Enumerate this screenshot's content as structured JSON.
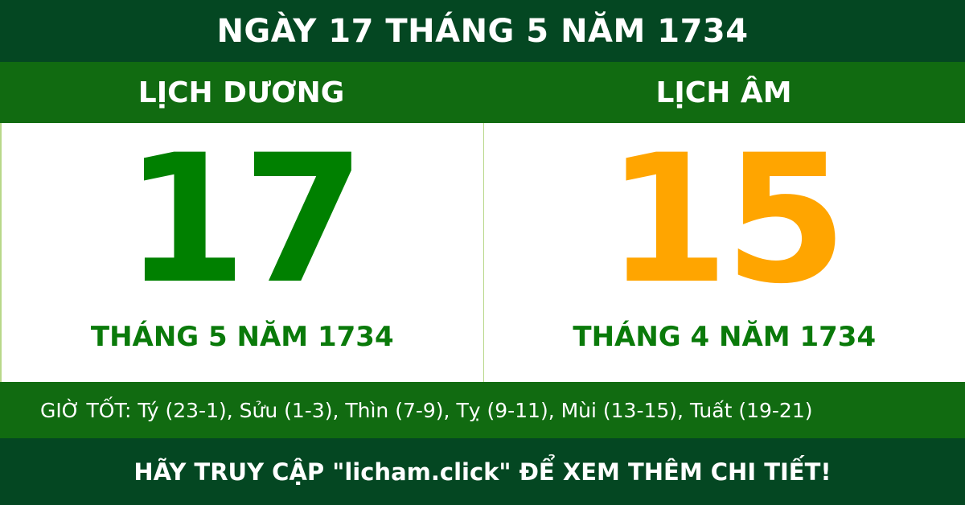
{
  "title": "NGÀY 17 THÁNG 5 NĂM 1734",
  "solar": {
    "heading": "LỊCH DƯƠNG",
    "day": "17",
    "month_year": "THÁNG 5 NĂM 1734"
  },
  "lunar": {
    "heading": "LỊCH ÂM",
    "day": "15",
    "month_year": "THÁNG 4 NĂM 1734"
  },
  "good_hours": "GIỜ TỐT: Tý (23-1), Sửu (1-3), Thìn (7-9), Tỵ (9-11), Mùi (13-15), Tuất (19-21)",
  "footer": "HÃY TRUY CẬP \"licham.click\" ĐỂ XEM THÊM CHI TIẾT!",
  "colors": {
    "dark_green": "#044722",
    "band_green": "#116b11",
    "solar_day": "#008000",
    "lunar_day": "#ffa500"
  }
}
